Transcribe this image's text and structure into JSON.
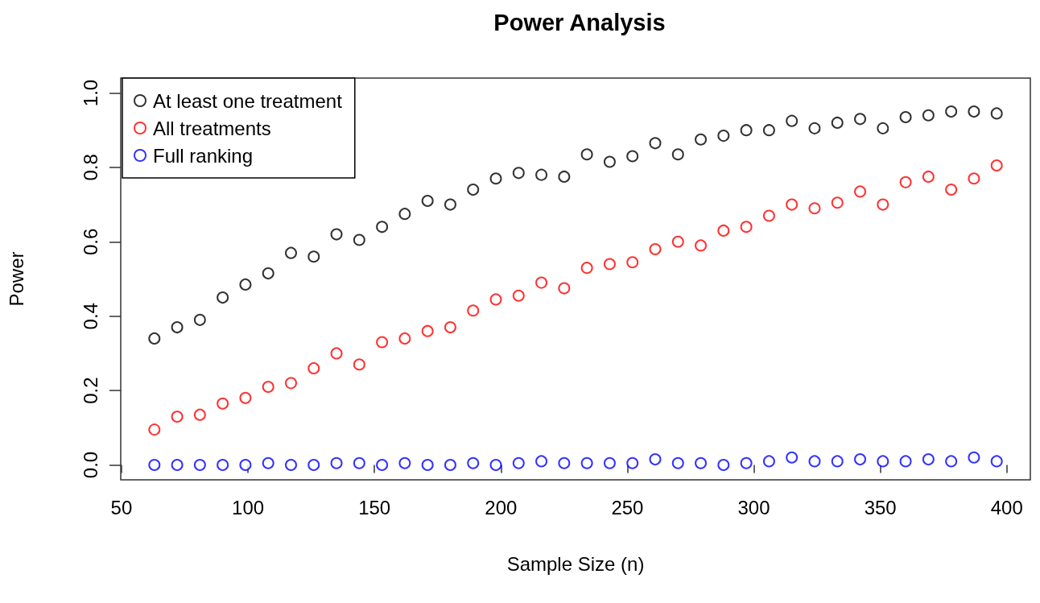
{
  "chart_data": {
    "type": "scatter",
    "title": "Power Analysis",
    "xlabel": "Sample Size (n)",
    "ylabel": "Power",
    "x": [
      63,
      72,
      81,
      90,
      99,
      108,
      117,
      126,
      135,
      144,
      153,
      162,
      171,
      180,
      189,
      198,
      207,
      216,
      225,
      234,
      243,
      252,
      261,
      270,
      279,
      288,
      297,
      306,
      315,
      324,
      333,
      342,
      351,
      360,
      369,
      378,
      387,
      396
    ],
    "series": [
      {
        "name": "At least one treatment",
        "color": "#000000",
        "values": [
          0.34,
          0.37,
          0.39,
          0.45,
          0.485,
          0.515,
          0.57,
          0.56,
          0.62,
          0.605,
          0.64,
          0.675,
          0.71,
          0.7,
          0.74,
          0.77,
          0.785,
          0.78,
          0.775,
          0.835,
          0.815,
          0.83,
          0.865,
          0.835,
          0.875,
          0.885,
          0.9,
          0.9,
          0.925,
          0.905,
          0.92,
          0.93,
          0.905,
          0.935,
          0.94,
          0.95,
          0.95,
          0.945
        ]
      },
      {
        "name": "All treatments",
        "color": "#ff0000",
        "values": [
          0.095,
          0.13,
          0.135,
          0.165,
          0.18,
          0.21,
          0.22,
          0.26,
          0.3,
          0.27,
          0.33,
          0.34,
          0.36,
          0.37,
          0.415,
          0.445,
          0.455,
          0.49,
          0.475,
          0.53,
          0.54,
          0.545,
          0.58,
          0.6,
          0.59,
          0.63,
          0.64,
          0.67,
          0.7,
          0.69,
          0.705,
          0.735,
          0.7,
          0.76,
          0.775,
          0.74,
          0.77,
          0.805
        ]
      },
      {
        "name": "Full ranking",
        "color": "#0000ff",
        "values": [
          0,
          0,
          0,
          0,
          0,
          0.005,
          0,
          0,
          0.005,
          0.005,
          0,
          0.005,
          0,
          0,
          0.005,
          0,
          0.005,
          0.01,
          0.005,
          0.005,
          0.005,
          0.005,
          0.015,
          0.005,
          0.005,
          0,
          0.005,
          0.01,
          0.02,
          0.01,
          0.01,
          0.015,
          0.01,
          0.01,
          0.015,
          0.01,
          0.02,
          0.01
        ]
      }
    ],
    "xlim": [
      49.7,
      409.3
    ],
    "xticks": [
      50,
      100,
      150,
      200,
      250,
      300,
      350,
      400
    ],
    "ylim": [
      -0.04,
      1.04
    ],
    "yticks": [
      {
        "value": 0,
        "label": "0.0"
      },
      {
        "value": 0.2,
        "label": "0.2"
      },
      {
        "value": 0.4,
        "label": "0.4"
      },
      {
        "value": 0.6,
        "label": "0.6"
      },
      {
        "value": 0.8,
        "label": "0.8"
      },
      {
        "value": 1,
        "label": "1.0"
      }
    ],
    "grid": false,
    "legend": "top left",
    "marker": "circle"
  }
}
